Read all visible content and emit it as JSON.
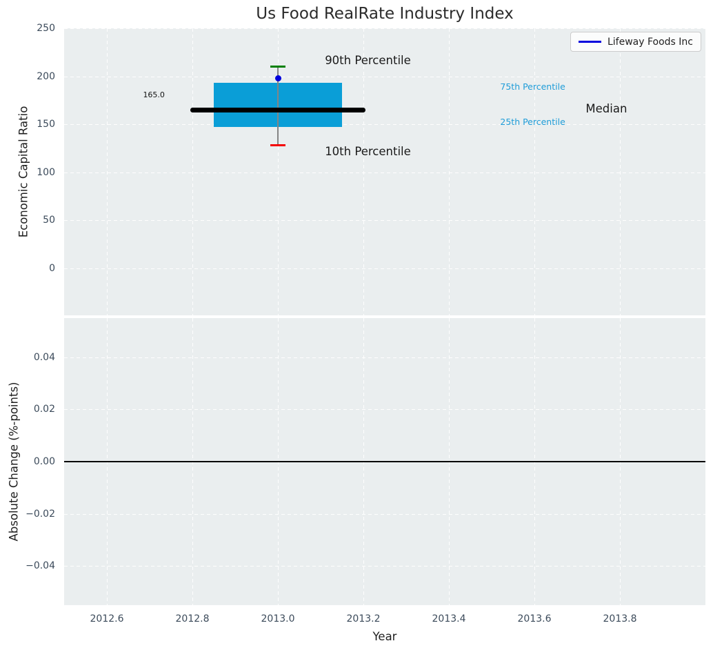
{
  "title": "Us Food RealRate Industry Index",
  "legend": {
    "label": "Lifeway Foods Inc",
    "position": "upper right"
  },
  "colors": {
    "page_bg": "#ffffff",
    "plot_bg": "#eaeeef",
    "grid": "#ffffff",
    "box_fill": "#0a9ed7",
    "median_line": "#000000",
    "whisker": "#848484",
    "p90_cap": "#008000",
    "p10_cap": "#f40000",
    "company_point": "#0000dd",
    "legend_line": "#0000dd",
    "tick_label": "#3b4a5a",
    "percentile_label": "#1e9cd8",
    "text_dark": "#1a1a1a",
    "zero_line": "#000000"
  },
  "chart_data": [
    {
      "type": "boxplot",
      "title": "Us Food RealRate Industry Index",
      "ylabel": "Economic Capital Ratio",
      "xlabel": "",
      "grid": true,
      "show_xtick_labels": false,
      "xlim": [
        2012.5,
        2014.0
      ],
      "ylim": [
        -49,
        250
      ],
      "xticks": [
        {
          "v": 2012.6,
          "label": "2012.6"
        },
        {
          "v": 2012.8,
          "label": "2012.8"
        },
        {
          "v": 2013.0,
          "label": "2013.0"
        },
        {
          "v": 2013.2,
          "label": "2013.2"
        },
        {
          "v": 2013.4,
          "label": "2013.4"
        },
        {
          "v": 2013.6,
          "label": "2013.6"
        },
        {
          "v": 2013.8,
          "label": "2013.8"
        }
      ],
      "yticks": [
        {
          "v": 0,
          "label": "0"
        },
        {
          "v": 50,
          "label": "50"
        },
        {
          "v": 100,
          "label": "100"
        },
        {
          "v": 150,
          "label": "150"
        },
        {
          "v": 200,
          "label": "200"
        },
        {
          "v": 250,
          "label": "250"
        }
      ],
      "box": {
        "x": 2013.0,
        "p10": 128,
        "q25": 147,
        "median": 165.0,
        "q75": 193,
        "p90": 210,
        "box_halfwidth": 0.15,
        "median_halfwidth": 0.205,
        "cap_halfwidth": 0.018
      },
      "series": [
        {
          "name": "Lifeway Foods Inc",
          "x": [
            2013.0
          ],
          "y": [
            198
          ]
        }
      ],
      "annotations": [
        {
          "text": "165.0",
          "x": 2012.71,
          "y": 180,
          "color": "#111111",
          "size": 11,
          "align": "center"
        },
        {
          "text": "90th Percentile",
          "x": 2013.11,
          "y": 216,
          "color": "#1a1a1a",
          "size": 16.5,
          "align": "left"
        },
        {
          "text": "10th Percentile",
          "x": 2013.11,
          "y": 121,
          "color": "#1a1a1a",
          "size": 16.5,
          "align": "left"
        },
        {
          "text": "75th Percentile",
          "x": 2013.52,
          "y": 189,
          "color": "#1e9cd8",
          "size": 12.5,
          "align": "left"
        },
        {
          "text": "25th Percentile",
          "x": 2013.52,
          "y": 152,
          "color": "#1e9cd8",
          "size": 12.5,
          "align": "left"
        },
        {
          "text": "Median",
          "x": 2013.72,
          "y": 166,
          "color": "#1a1a1a",
          "size": 16.5,
          "align": "left"
        }
      ]
    },
    {
      "type": "line",
      "ylabel": "Absolute Change (%-points)",
      "xlabel": "Year",
      "grid": true,
      "show_xtick_labels": true,
      "xlim": [
        2012.5,
        2014.0
      ],
      "ylim": [
        -0.055,
        0.055
      ],
      "xticks": [
        {
          "v": 2012.6,
          "label": "2012.6"
        },
        {
          "v": 2012.8,
          "label": "2012.8"
        },
        {
          "v": 2013.0,
          "label": "2013.0"
        },
        {
          "v": 2013.2,
          "label": "2013.2"
        },
        {
          "v": 2013.4,
          "label": "2013.4"
        },
        {
          "v": 2013.6,
          "label": "2013.6"
        },
        {
          "v": 2013.8,
          "label": "2013.8"
        }
      ],
      "yticks": [
        {
          "v": -0.04,
          "label": "−0.04"
        },
        {
          "v": -0.02,
          "label": "−0.02"
        },
        {
          "v": 0.0,
          "label": "0.00"
        },
        {
          "v": 0.02,
          "label": "0.02"
        },
        {
          "v": 0.04,
          "label": "0.04"
        }
      ],
      "zero_line": 0.0,
      "series": []
    }
  ]
}
